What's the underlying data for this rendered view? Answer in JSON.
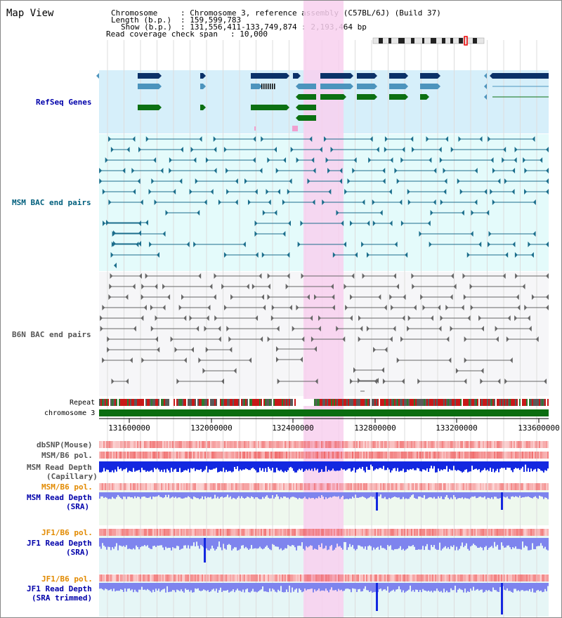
{
  "window": {
    "title": "Map View"
  },
  "header": {
    "chromosome_label": "Chromosome",
    "chromosome_value": ": Chromosome 3, reference assembly (C57BL/6J) (Build 37)",
    "length_label": "Length (b.p.)",
    "length_value": ": 159,599,783",
    "show_label": "Show (b.p.)",
    "show_value": ": 131,556,411-133,749,874 : 2,193,464 bp",
    "span_label": "Read coverage check span",
    "span_value": ": 10,000"
  },
  "tracks": {
    "refseq": "RefSeq Genes",
    "msm_bac": "MSM BAC end pairs",
    "b6n_bac": "B6N BAC end pairs",
    "repeat": "Repeat",
    "chromosome": "chromosome 3",
    "dbsnp": "dbSNP(Mouse)",
    "msm_b6_pol_1": "MSM/B6 pol.",
    "msm_depth_cap_1": "MSM Read Depth",
    "msm_depth_cap_2": "(Capillary)",
    "msm_b6_pol_2": "MSM/B6 pol.",
    "msm_depth_sra_1": "MSM Read Depth",
    "msm_depth_sra_2": "(SRA)",
    "jf1_b6_pol_1": "JF1/B6 pol.",
    "jf1_depth_sra_1": "JF1 Read Depth",
    "jf1_depth_sra_2": "(SRA)",
    "jf1_b6_pol_2": "JF1/B6 pol.",
    "jf1_depth_trim_1": "JF1 Read Depth",
    "jf1_depth_trim_2": "(SRA trimmed)"
  },
  "ruler": {
    "ticks": [
      "131600000",
      "132000000",
      "132400000",
      "132800000",
      "133200000",
      "133600000"
    ]
  },
  "colors": {
    "refseq_bg": "#d6effa",
    "msm_bg": "#e4fbfb",
    "b6n_bg": "#f6f6f8",
    "highlight": "#f8d0ee",
    "refseq_dark": "#0b3168",
    "refseq_mid": "#4c94bd",
    "refseq_green": "#0c7012",
    "msm_line": "#1b6e8c",
    "b6n_line": "#666666",
    "chromosome_bar": "#0b6d10",
    "snp_red": "#ee5555",
    "depth_blue": "#1428e0",
    "depth_light": "#7e84ee",
    "label_blue": "#0000aa",
    "label_teal": "#005f7d",
    "label_gray": "#555555",
    "label_orange": "#e28a00"
  }
}
